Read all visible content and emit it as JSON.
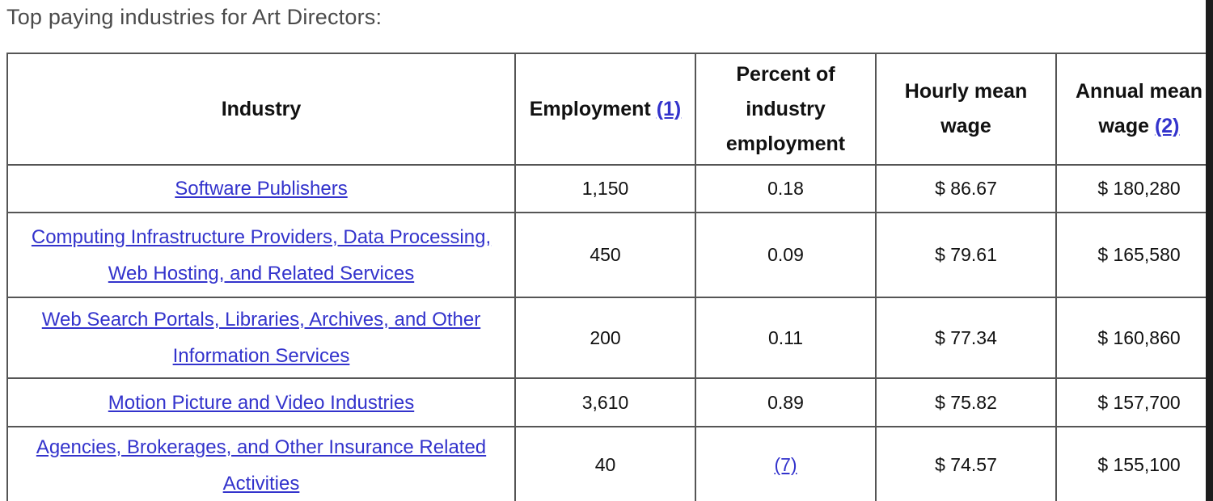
{
  "page": {
    "title": "Top paying industries for Art Directors:"
  },
  "colors": {
    "link": "#3333cc",
    "border": "#555555",
    "title_text": "#4a4a4a",
    "body_text": "#111111",
    "right_edge": "#1d1d1d"
  },
  "table": {
    "columns": [
      {
        "label": "Industry"
      },
      {
        "label": "Employment",
        "footnote_link": "(1)"
      },
      {
        "label": "Percent of industry employment"
      },
      {
        "label": "Hourly mean wage"
      },
      {
        "label": "Annual mean wage",
        "footnote_link": "(2)"
      }
    ],
    "rows": [
      {
        "industry": "Software Publishers",
        "employment": "1,150",
        "percent_of_industry_employment": "0.18",
        "hourly_mean_wage": "$ 86.67",
        "annual_mean_wage": "$ 180,280"
      },
      {
        "industry": "Computing Infrastructure Providers, Data Processing, Web Hosting, and Related Services",
        "employment": "450",
        "percent_of_industry_employment": "0.09",
        "hourly_mean_wage": "$ 79.61",
        "annual_mean_wage": "$ 165,580"
      },
      {
        "industry": "Web Search Portals, Libraries, Archives, and Other Information Services",
        "employment": "200",
        "percent_of_industry_employment": "0.11",
        "hourly_mean_wage": "$ 77.34",
        "annual_mean_wage": "$ 160,860"
      },
      {
        "industry": "Motion Picture and Video Industries",
        "employment": "3,610",
        "percent_of_industry_employment": "0.89",
        "hourly_mean_wage": "$ 75.82",
        "annual_mean_wage": "$ 157,700"
      },
      {
        "industry": "Agencies, Brokerages, and Other Insurance Related Activities",
        "employment": "40",
        "percent_of_industry_employment": "(7)",
        "hourly_mean_wage": "$ 74.57",
        "annual_mean_wage": "$ 155,100"
      }
    ]
  }
}
